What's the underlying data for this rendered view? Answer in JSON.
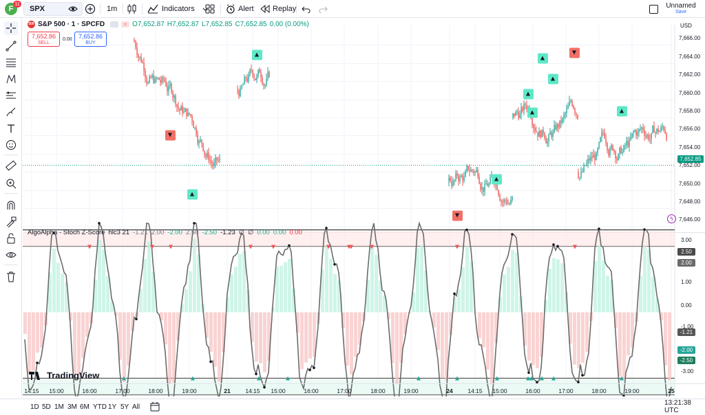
{
  "topbar": {
    "avatar_letter": "F",
    "avatar_badge": "11",
    "symbol": "SPX",
    "interval": "1m",
    "indicators_label": "Indicators",
    "alert_label": "Alert",
    "replay_label": "Replay",
    "layout_name": "Unnamed",
    "layout_status": "Save"
  },
  "legend": {
    "symbol_title": "S&P 500 · 1 · SPCFD",
    "open": "O7,652.87",
    "high": "H7,652.87",
    "low": "L7,652.85",
    "close": "C7,652.85",
    "change": "0.00 (0.00%)",
    "sell_price": "7,652.86",
    "sell_label": "SELL",
    "spread": "0.00",
    "buy_price": "7,652.86",
    "buy_label": "BUY"
  },
  "indicator": {
    "name": "AlgoAlpha - Stoch Z-Score",
    "params": "hlc3 21",
    "v1": "-1.21",
    "v2": "2.00",
    "v3": "-2.00",
    "v4": "2.50",
    "v5": "-2.50",
    "v6": "-1.23",
    "v7": "∅",
    "v8": "∅",
    "v9": "0.00",
    "v10": "0.00",
    "v11": "0.00"
  },
  "price_axis": {
    "currency": "USD",
    "ticks": [
      "7,666.00",
      "7,664.00",
      "7,662.00",
      "7,660.00",
      "7,658.00",
      "7,656.00",
      "7,654.00",
      "7,652.00",
      "7,650.00",
      "7,648.00",
      "7,646.00"
    ],
    "last_price": "7,652.85"
  },
  "osc_axis": {
    "ticks": [
      "3.00",
      "2.00",
      "1.00",
      "0.00",
      "-1.00",
      "-3.00"
    ],
    "badges": [
      "2.50",
      "2.00",
      "-1.21",
      "-2.00",
      "-2.50"
    ]
  },
  "time_axis": [
    "14:15",
    "15:00",
    "16:00",
    "17:00",
    "18:00",
    "19:00",
    "21",
    "14:15",
    "15:00",
    "16:00",
    "17:00",
    "18:00",
    "19:00",
    "24",
    "14:15",
    "15:00",
    "16:00",
    "17:00",
    "18:00",
    "19:00",
    "25"
  ],
  "periods": [
    "1D",
    "5D",
    "1M",
    "3M",
    "6M",
    "YTD",
    "1Y",
    "5Y",
    "All"
  ],
  "clock": "13:21:38 UTC",
  "watermark": "TradingView",
  "colors": {
    "up": "#26a69a",
    "down": "#ef5350",
    "buy_signal": "#5ee8c6",
    "sell_signal": "#f07066",
    "accent": "#2962ff"
  },
  "icons": [
    "crosshair-icon",
    "trend-line-icon",
    "fib-icon",
    "pattern-icon",
    "projection-icon",
    "brush-icon",
    "text-icon",
    "emoji-icon",
    "ruler-icon",
    "zoom-icon",
    "magnet-icon",
    "lock-drawing-icon",
    "lock-icon",
    "eye-icon",
    "trash-icon"
  ]
}
